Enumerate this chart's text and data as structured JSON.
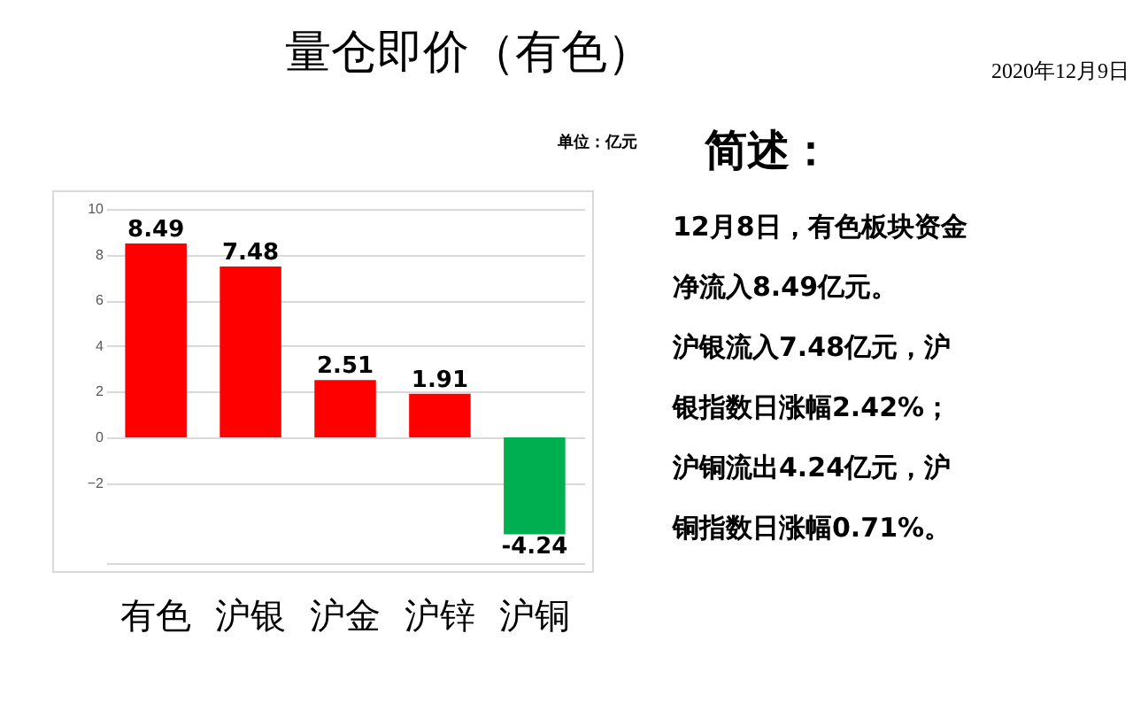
{
  "chart_data": {
    "type": "bar",
    "title": "量仓即价（有色）",
    "subtitle": "单位：亿元",
    "categories": [
      "有色",
      "沪银",
      "沪金",
      "沪锌",
      "沪铜"
    ],
    "values": [
      8.49,
      7.48,
      2.51,
      1.91,
      -4.24
    ],
    "colors": [
      "#ff0000",
      "#ff0000",
      "#ff0000",
      "#ff0000",
      "#00b050"
    ],
    "ylim": [
      -5.5,
      10
    ],
    "yticks": [
      -2,
      0,
      2,
      4,
      6,
      8,
      10
    ],
    "grid": "y",
    "data_labels": true,
    "annotations": [
      "2020年12月9日",
      "简述：",
      "12月8日，有色板块资金",
      "净流入8.49亿元。",
      "沪银流入7.48亿元，沪",
      "银指数日涨幅2.42%；",
      "沪铜流出4.24亿元，沪",
      "铜指数日涨幅0.71%。"
    ]
  }
}
